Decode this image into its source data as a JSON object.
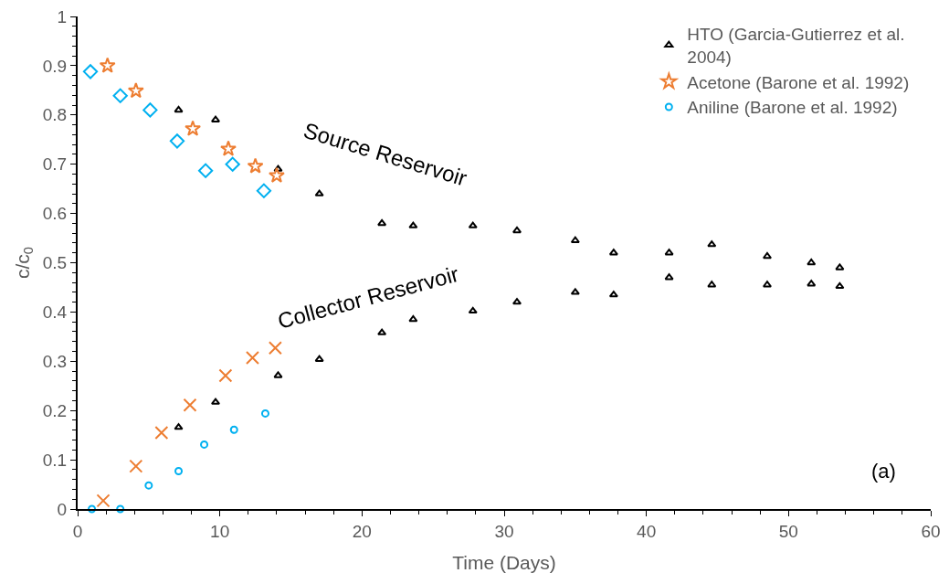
{
  "chart_data": {
    "type": "scatter",
    "xlabel": "Time (Days)",
    "ylabel": "c/c$_{0}$",
    "xlim": [
      0,
      60
    ],
    "xticks": [
      0,
      10,
      20,
      30,
      40,
      50,
      60
    ],
    "ylim": [
      0,
      1
    ],
    "yticks": [
      0,
      0.1,
      0.2,
      0.3,
      0.4,
      0.5,
      0.6,
      0.7,
      0.8,
      0.9,
      1
    ],
    "grid": false,
    "legend": "top right",
    "annotations": [
      "Source Reservoir",
      "Collector Reservoir",
      "(a)"
    ],
    "series": [
      {
        "name": "HTO (Garcia-Gutierrez et al. 2004)",
        "color": "#000000",
        "marker": "triangle",
        "x": [
          7.1,
          9.7,
          14.1,
          17.0,
          21.4,
          23.6,
          27.8,
          30.9,
          35.0,
          37.7,
          41.6,
          44.6,
          48.5,
          51.6,
          53.6,
          7.1,
          9.7,
          14.1,
          17.0,
          21.4,
          23.6,
          27.8,
          30.9,
          35.0,
          37.7,
          41.6,
          44.6,
          48.5,
          51.6,
          53.6
        ],
        "values": [
          0.81,
          0.79,
          0.69,
          0.64,
          0.58,
          0.575,
          0.575,
          0.565,
          0.545,
          0.52,
          0.52,
          0.537,
          0.513,
          0.5,
          0.49,
          0.166,
          0.217,
          0.271,
          0.304,
          0.358,
          0.385,
          0.402,
          0.42,
          0.44,
          0.435,
          0.47,
          0.455,
          0.455,
          0.457,
          0.452
        ]
      },
      {
        "name": "Acetone (Barone et al. 1992)",
        "color": "#ed7d31",
        "marker": "star",
        "x": [
          2.1,
          4.1,
          8.1,
          10.6,
          12.5,
          14.0
        ],
        "values": [
          0.9,
          0.849,
          0.772,
          0.731,
          0.696,
          0.677
        ]
      },
      {
        "color": "#ed7d31",
        "marker": "cross",
        "x": [
          1.8,
          4.1,
          5.9,
          7.9,
          10.4,
          12.3,
          13.9
        ],
        "values": [
          0.017,
          0.087,
          0.155,
          0.211,
          0.271,
          0.307,
          0.327
        ]
      },
      {
        "color": "#00b0f0",
        "marker": "diamond",
        "x": [
          0.9,
          3.0,
          5.1,
          7.0,
          9.0,
          10.9,
          13.1
        ],
        "values": [
          0.888,
          0.839,
          0.81,
          0.747,
          0.687,
          0.7,
          0.646
        ]
      },
      {
        "name": "Aniline (Barone et al. 1992)",
        "color": "#00b0f0",
        "marker": "circle",
        "x": [
          1.0,
          3.0,
          5.0,
          7.1,
          8.9,
          11.0,
          13.2
        ],
        "values": [
          0.0,
          0.0,
          0.048,
          0.077,
          0.131,
          0.161,
          0.194
        ]
      }
    ]
  }
}
